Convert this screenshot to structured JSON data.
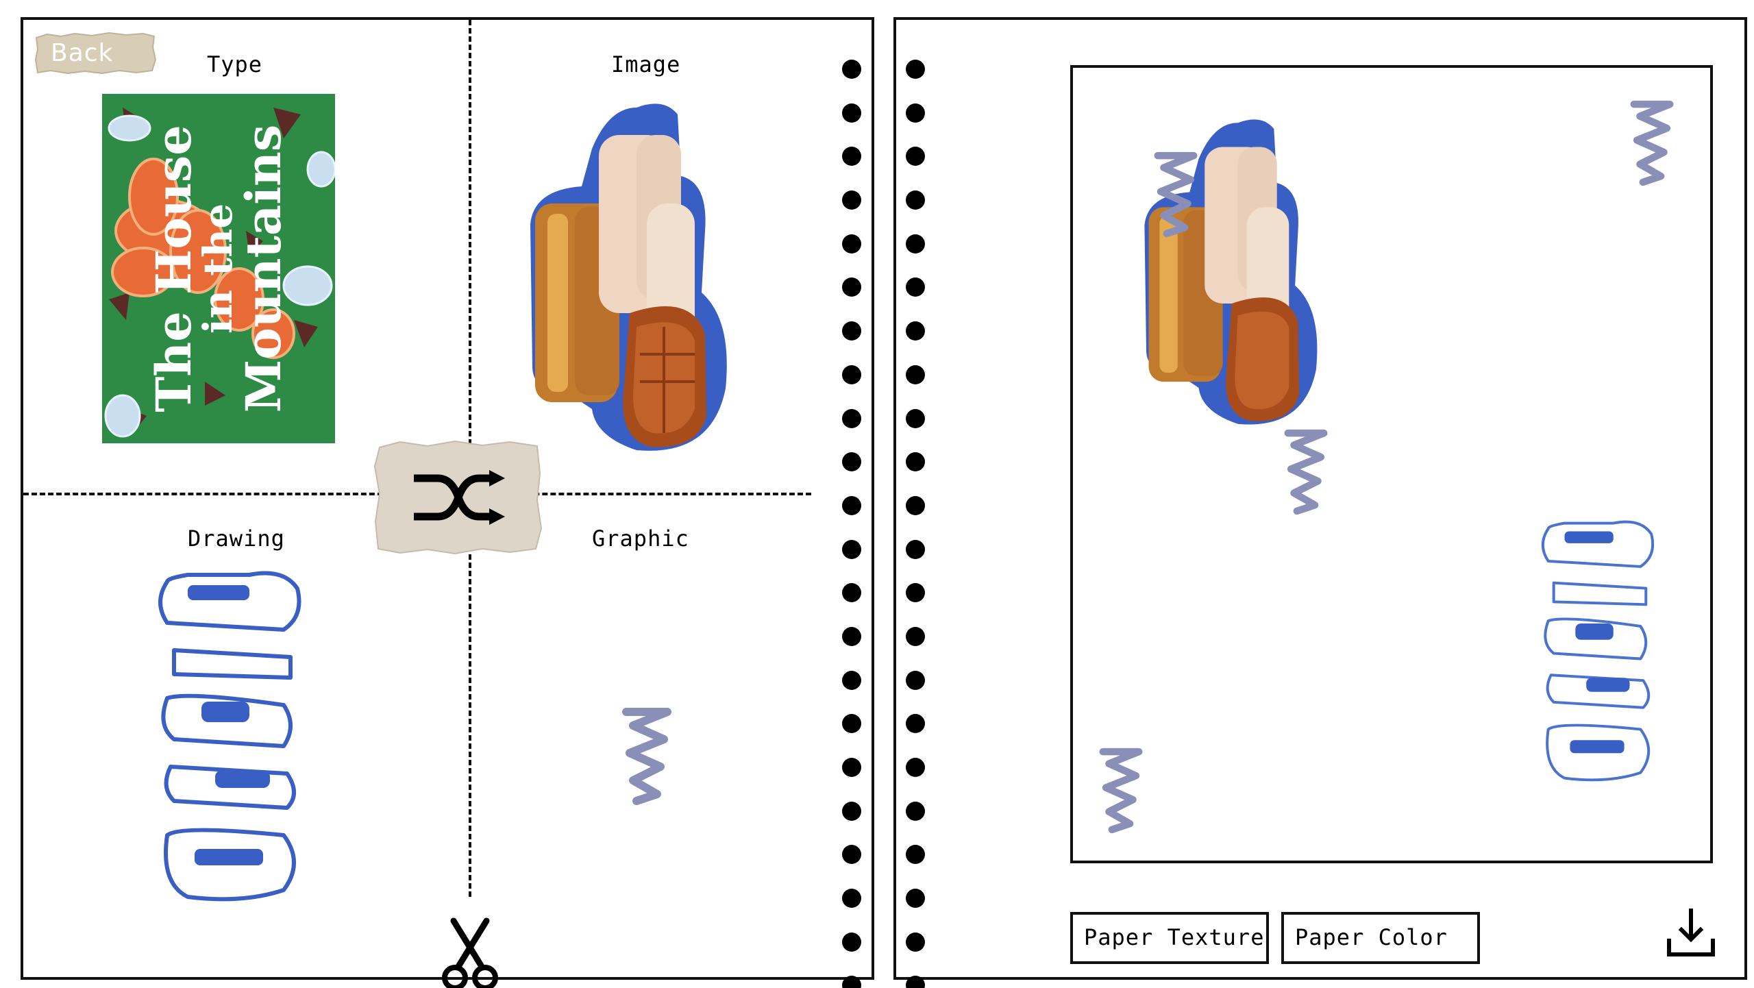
{
  "left_panel": {
    "back_label": "Back",
    "quadrants": {
      "type_label": "Type",
      "image_label": "Image",
      "drawing_label": "Drawing",
      "graphic_label": "Graphic"
    },
    "book_cover": {
      "line1": "The House",
      "line2": "in the",
      "line3": "Mountains"
    },
    "icons": {
      "shuffle": "shuffle-icon",
      "scissors": "scissors-icon"
    }
  },
  "right_panel": {
    "buttons": {
      "paper_texture": "Paper Texture",
      "paper_color": "Paper Color"
    },
    "icons": {
      "download": "download-icon"
    }
  },
  "colors": {
    "border": "#111111",
    "accent_blue": "#3a5fc4",
    "squiggle": "#8a8fb8",
    "torn_paper": "#ddd6c8"
  }
}
